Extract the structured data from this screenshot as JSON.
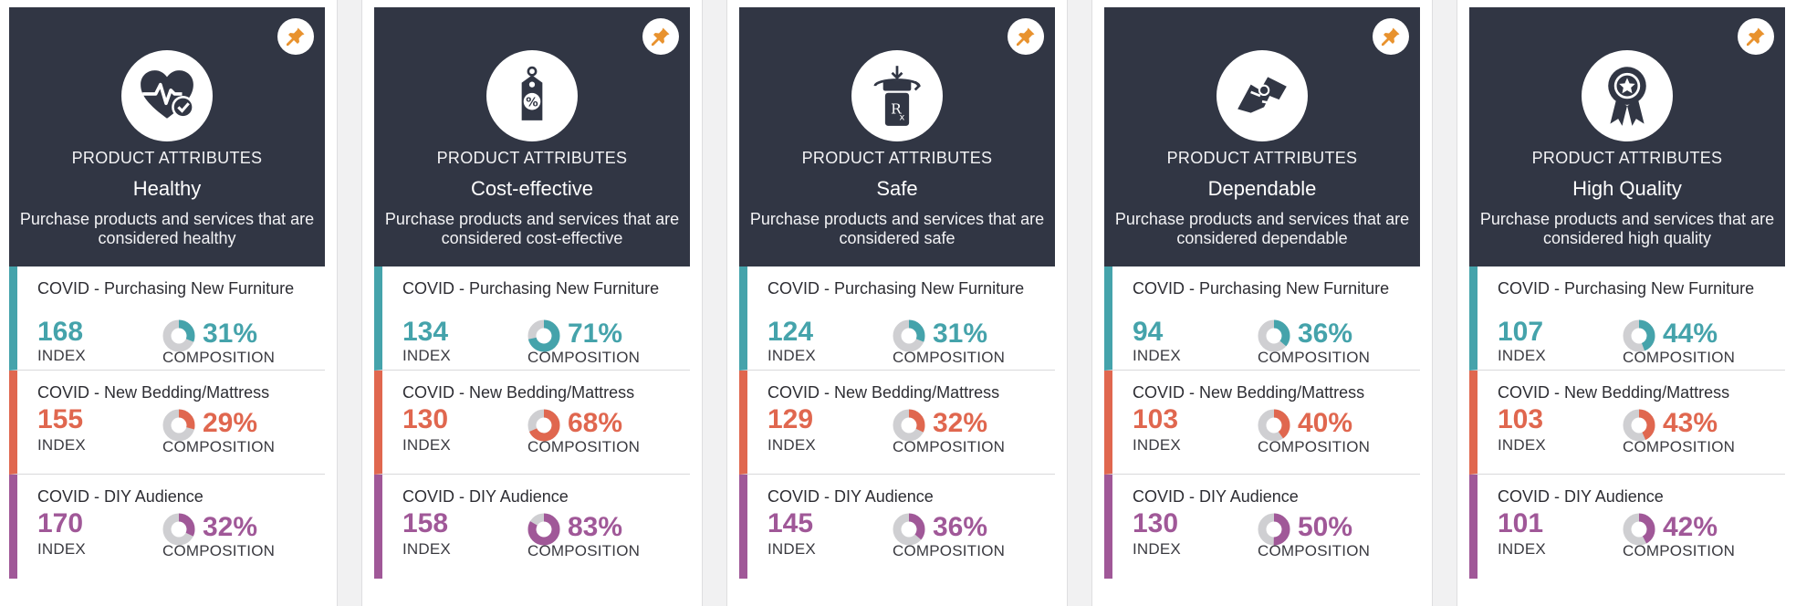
{
  "colors": {
    "header_bg": "#313644",
    "teal": "#45a3ab",
    "coral": "#e0674f",
    "purple": "#a05898",
    "pin": "#e8922e",
    "donut_track": "#cfcfd2"
  },
  "cards": [
    {
      "icon": "heart-check-icon",
      "eyebrow": "PRODUCT ATTRIBUTES",
      "title": "Healthy",
      "description": "Purchase products and services that are considered healthy",
      "segments": [
        {
          "name": "COVID - Purchasing New Furniture",
          "index": "168",
          "index_label": "INDEX",
          "composition": "31%",
          "composition_value": 31,
          "composition_label": "COMPOSITION"
        },
        {
          "name": "COVID - New Bedding/Mattress",
          "index": "155",
          "index_label": "INDEX",
          "composition": "29%",
          "composition_value": 29,
          "composition_label": "COMPOSITION"
        },
        {
          "name": "COVID - DIY Audience",
          "index": "170",
          "index_label": "INDEX",
          "composition": "32%",
          "composition_value": 32,
          "composition_label": "COMPOSITION"
        }
      ]
    },
    {
      "icon": "price-tag-percent-icon",
      "eyebrow": "PRODUCT ATTRIBUTES",
      "title": "Cost-effective",
      "description": "Purchase products and services that are considered cost-effective",
      "segments": [
        {
          "name": "COVID - Purchasing New Furniture",
          "index": "134",
          "index_label": "INDEX",
          "composition": "71%",
          "composition_value": 71,
          "composition_label": "COMPOSITION"
        },
        {
          "name": "COVID - New Bedding/Mattress",
          "index": "130",
          "index_label": "INDEX",
          "composition": "68%",
          "composition_value": 68,
          "composition_label": "COMPOSITION"
        },
        {
          "name": "COVID - DIY Audience",
          "index": "158",
          "index_label": "INDEX",
          "composition": "83%",
          "composition_value": 83,
          "composition_label": "COMPOSITION"
        }
      ]
    },
    {
      "icon": "prescription-bottle-icon",
      "eyebrow": "PRODUCT ATTRIBUTES",
      "title": "Safe",
      "description": "Purchase products and services that are considered safe",
      "segments": [
        {
          "name": "COVID - Purchasing New Furniture",
          "index": "124",
          "index_label": "INDEX",
          "composition": "31%",
          "composition_value": 31,
          "composition_label": "COMPOSITION"
        },
        {
          "name": "COVID - New Bedding/Mattress",
          "index": "129",
          "index_label": "INDEX",
          "composition": "32%",
          "composition_value": 32,
          "composition_label": "COMPOSITION"
        },
        {
          "name": "COVID - DIY Audience",
          "index": "145",
          "index_label": "INDEX",
          "composition": "36%",
          "composition_value": 36,
          "composition_label": "COMPOSITION"
        }
      ]
    },
    {
      "icon": "handshake-icon",
      "eyebrow": "PRODUCT ATTRIBUTES",
      "title": "Dependable",
      "description": "Purchase products and services that are considered dependable",
      "segments": [
        {
          "name": "COVID - Purchasing New Furniture",
          "index": "94",
          "index_label": "INDEX",
          "composition": "36%",
          "composition_value": 36,
          "composition_label": "COMPOSITION"
        },
        {
          "name": "COVID - New Bedding/Mattress",
          "index": "103",
          "index_label": "INDEX",
          "composition": "40%",
          "composition_value": 40,
          "composition_label": "COMPOSITION"
        },
        {
          "name": "COVID - DIY Audience",
          "index": "130",
          "index_label": "INDEX",
          "composition": "50%",
          "composition_value": 50,
          "composition_label": "COMPOSITION"
        }
      ]
    },
    {
      "icon": "award-ribbon-icon",
      "eyebrow": "PRODUCT ATTRIBUTES",
      "title": "High Quality",
      "description": "Purchase products and services that are considered high quality",
      "segments": [
        {
          "name": "COVID - Purchasing New Furniture",
          "index": "107",
          "index_label": "INDEX",
          "composition": "44%",
          "composition_value": 44,
          "composition_label": "COMPOSITION"
        },
        {
          "name": "COVID - New Bedding/Mattress",
          "index": "103",
          "index_label": "INDEX",
          "composition": "43%",
          "composition_value": 43,
          "composition_label": "COMPOSITION"
        },
        {
          "name": "COVID - DIY Audience",
          "index": "101",
          "index_label": "INDEX",
          "composition": "42%",
          "composition_value": 42,
          "composition_label": "COMPOSITION"
        }
      ]
    }
  ]
}
